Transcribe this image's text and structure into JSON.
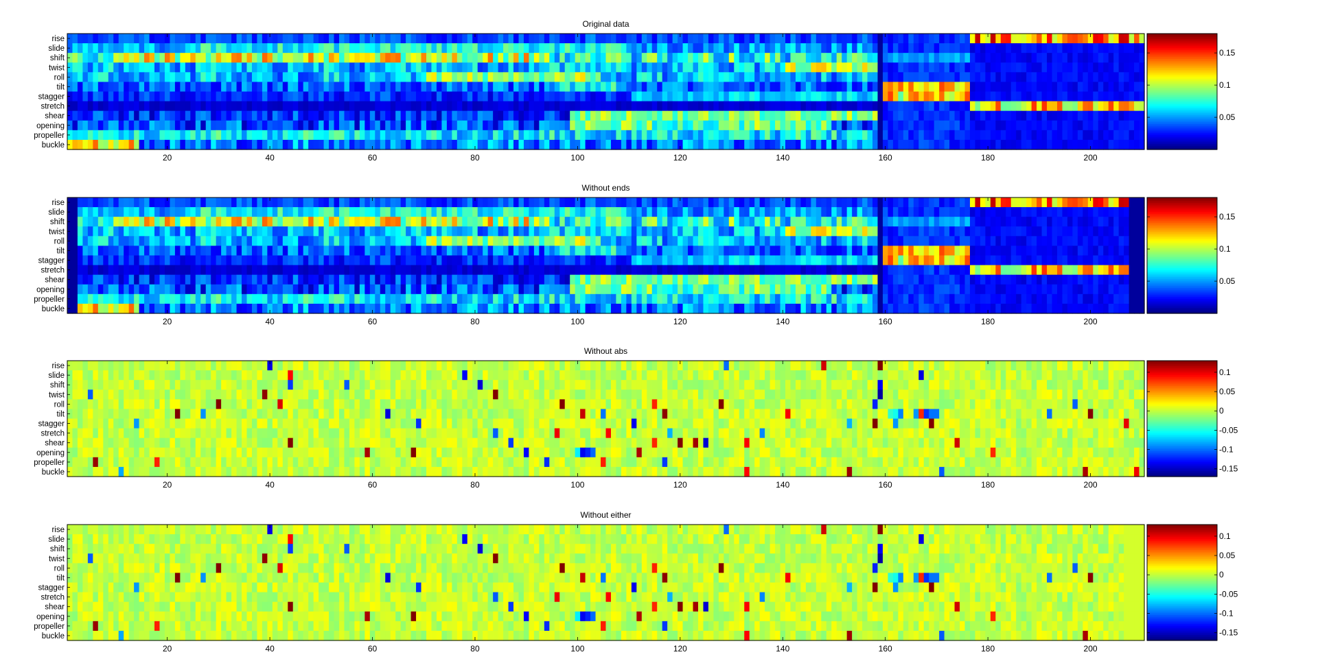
{
  "chart_data": [
    {
      "type": "heatmap",
      "title": "Original data",
      "rows": [
        "rise",
        "slide",
        "shift",
        "twist",
        "roll",
        "tilt",
        "stagger",
        "stretch",
        "shear",
        "opening",
        "propeller",
        "buckle"
      ],
      "x_range": [
        1,
        210
      ],
      "x_ticks": [
        20,
        40,
        60,
        80,
        100,
        120,
        140,
        160,
        180,
        200
      ],
      "colorbar": {
        "ticks": [
          0.05,
          0.1,
          0.15
        ],
        "tick_labels": [
          "0.05",
          "0.1",
          "0.15"
        ],
        "range": [
          0,
          0.18
        ]
      },
      "colormap": "jet",
      "value_kind": "absolute"
    },
    {
      "type": "heatmap",
      "title": "Without ends",
      "rows": [
        "rise",
        "slide",
        "shift",
        "twist",
        "roll",
        "tilt",
        "stagger",
        "stretch",
        "shear",
        "opening",
        "propeller",
        "buckle"
      ],
      "x_range": [
        1,
        210
      ],
      "x_ticks": [
        20,
        40,
        60,
        80,
        100,
        120,
        140,
        160,
        180,
        200
      ],
      "colorbar": {
        "ticks": [
          0.05,
          0.1,
          0.15
        ],
        "tick_labels": [
          "0.05",
          "0.1",
          "0.15"
        ],
        "range": [
          0,
          0.18
        ]
      },
      "colormap": "jet",
      "value_kind": "absolute"
    },
    {
      "type": "heatmap",
      "title": "Without abs",
      "rows": [
        "rise",
        "slide",
        "shift",
        "twist",
        "roll",
        "tilt",
        "stagger",
        "stretch",
        "shear",
        "opening",
        "propeller",
        "buckle"
      ],
      "x_range": [
        1,
        210
      ],
      "x_ticks": [
        20,
        40,
        60,
        80,
        100,
        120,
        140,
        160,
        180,
        200
      ],
      "colorbar": {
        "ticks": [
          0.1,
          0.05,
          0,
          -0.05,
          -0.1,
          -0.15
        ],
        "tick_labels": [
          "0.1",
          "0.05",
          "0",
          "-0.05",
          "-0.1",
          "-0.15"
        ],
        "range": [
          -0.17,
          0.13
        ]
      },
      "colormap": "jet",
      "value_kind": "signed"
    },
    {
      "type": "heatmap",
      "title": "Without either",
      "rows": [
        "rise",
        "slide",
        "shift",
        "twist",
        "roll",
        "tilt",
        "stagger",
        "stretch",
        "shear",
        "opening",
        "propeller",
        "buckle"
      ],
      "x_range": [
        1,
        210
      ],
      "x_ticks": [
        20,
        40,
        60,
        80,
        100,
        120,
        140,
        160,
        180,
        200
      ],
      "colorbar": {
        "ticks": [
          0.1,
          0.05,
          0,
          -0.05,
          -0.1,
          -0.15
        ],
        "tick_labels": [
          "0.1",
          "0.05",
          "0",
          "-0.05",
          "-0.1",
          "-0.15"
        ],
        "range": [
          -0.17,
          0.13
        ]
      },
      "colormap": "jet",
      "value_kind": "signed"
    }
  ]
}
